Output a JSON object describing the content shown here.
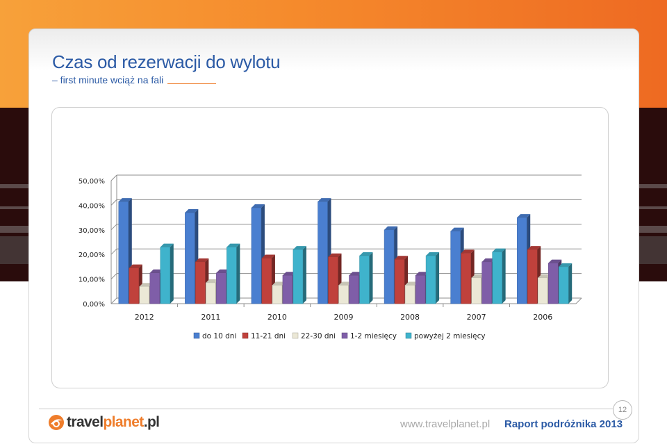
{
  "slide": {
    "title": "Czas od rezerwacji do wylotu",
    "subtitle": "– first minute wciąż na fali",
    "page_number": "12"
  },
  "footer": {
    "logo_part1": "travel",
    "logo_part2": "planet",
    "logo_part3": ".pl",
    "url": "www.travelplanet.pl",
    "report": "Raport podróżnika 2013"
  },
  "colors": {
    "accent_orange": "#ef7d2b",
    "title_blue": "#2b5aa5"
  },
  "chart_data": {
    "type": "bar",
    "categories": [
      "2012",
      "2011",
      "2010",
      "2009",
      "2008",
      "2007",
      "2006"
    ],
    "series": [
      {
        "name": "do 10 dni",
        "color": "#4a7fd0",
        "values": [
          41.5,
          37.0,
          39.0,
          41.5,
          30.0,
          29.5,
          35.0
        ]
      },
      {
        "name": "11-21 dni",
        "color": "#c0413c",
        "values": [
          14.5,
          17.0,
          18.5,
          19.0,
          18.0,
          20.5,
          22.0
        ]
      },
      {
        "name": "22-30 dni",
        "color": "#ebe8d6",
        "values": [
          7.0,
          8.5,
          7.5,
          7.5,
          7.5,
          10.5,
          10.5
        ]
      },
      {
        "name": "1-2 miesięcy",
        "color": "#7f5ea8",
        "values": [
          12.5,
          12.5,
          11.5,
          11.5,
          11.5,
          17.0,
          16.5
        ]
      },
      {
        "name": "powyżej 2 miesięcy",
        "color": "#3fb3cc",
        "values": [
          23.0,
          23.0,
          22.0,
          19.5,
          19.5,
          21.0,
          15.0
        ]
      }
    ],
    "yticks": [
      "0,00%",
      "10,00%",
      "20,00%",
      "30,00%",
      "40,00%",
      "50,00%"
    ],
    "ylim": [
      0,
      50
    ],
    "xlabel": "",
    "ylabel": "",
    "grid": true,
    "legend": "bottom"
  }
}
